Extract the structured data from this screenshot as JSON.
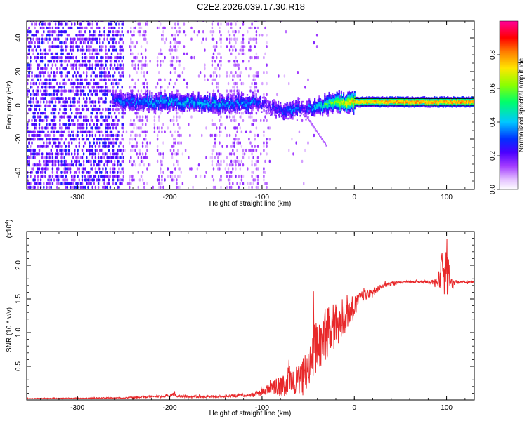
{
  "title": "C2E2.2026.039.17.30.R18",
  "chart_data": [
    {
      "type": "heatmap",
      "title": "C2E2.2026.039.17.30.R18",
      "xlabel": "Height of straight line (km)",
      "ylabel": "Frequency (Hz)",
      "xlim": [
        -355,
        130
      ],
      "ylim": [
        -50,
        50
      ],
      "xticks": [
        -300,
        -200,
        -100,
        0,
        100
      ],
      "yticks": [
        -40,
        -20,
        0,
        20,
        40
      ],
      "colorbar": {
        "label": "Normalized spectral amplitude",
        "range": [
          0,
          1
        ],
        "ticks": [
          0.0,
          0.2,
          0.4,
          0.6,
          0.8
        ],
        "tick_labels": [
          "0.0",
          "0.2",
          "0.4",
          "0.6",
          "0.8"
        ],
        "colors": [
          "#ffffff",
          "#cc66ff",
          "#6a00ff",
          "#0000ff",
          "#00c8ff",
          "#00ff80",
          "#7fff00",
          "#ffee00",
          "#ff8800",
          "#ff0000",
          "#ff00aa"
        ]
      },
      "ridge": {
        "x": [
          -262,
          -250,
          -200,
          -150,
          -110,
          -95,
          -80,
          -70,
          -60,
          -55,
          -50,
          -40,
          -30,
          -20,
          -10,
          0,
          20,
          60,
          90,
          100,
          130
        ],
        "frequency": [
          4,
          2,
          2,
          0.5,
          2,
          0,
          -3,
          -3,
          -2,
          -3,
          -2,
          -1,
          1,
          2,
          1,
          2,
          2,
          2,
          2,
          2,
          2
        ],
        "amplitude": [
          0.3,
          0.35,
          0.4,
          0.4,
          0.35,
          0.2,
          0.3,
          0.35,
          0.3,
          0.2,
          0.35,
          0.45,
          0.55,
          0.65,
          0.75,
          0.8,
          0.85,
          0.9,
          0.85,
          0.9,
          0.9
        ]
      },
      "noise_bands_x": [
        -345,
        -300,
        -240,
        -230,
        -210,
        -195,
        -150,
        -135,
        -125,
        -110,
        -95
      ]
    },
    {
      "type": "line",
      "xlabel": "Height of straight line (km)",
      "ylabel": "SNR (10 * v/v)",
      "y_multiplier": "(x10^4)",
      "y_multiplier_base": "(x10",
      "y_multiplier_exp": "4",
      "y_multiplier_close": ")",
      "xlim": [
        -355,
        130
      ],
      "ylim": [
        0,
        2.5
      ],
      "xticks": [
        -300,
        -200,
        -100,
        0,
        100
      ],
      "yticks": [
        0.5,
        1.0,
        1.5,
        2.0
      ],
      "ytick_labels": [
        "0.5",
        "1.0",
        "1.5",
        "2.0"
      ],
      "series": [
        {
          "name": "SNR",
          "color": "#e8282a",
          "x": [
            -355,
            -250,
            -200,
            -195,
            -190,
            -150,
            -110,
            -100,
            -90,
            -80,
            -70,
            -60,
            -50,
            -45,
            -40,
            -30,
            -20,
            -15,
            -10,
            0,
            10,
            20,
            30,
            40,
            50,
            60,
            70,
            80,
            90,
            95,
            100,
            105,
            110,
            130
          ],
          "y": [
            0.02,
            0.03,
            0.06,
            0.1,
            0.05,
            0.05,
            0.07,
            0.12,
            0.18,
            0.2,
            0.25,
            0.3,
            0.45,
            0.7,
            0.8,
            1.0,
            1.1,
            1.2,
            1.25,
            1.4,
            1.55,
            1.6,
            1.7,
            1.72,
            1.75,
            1.75,
            1.76,
            1.75,
            1.75,
            1.9,
            2.0,
            1.72,
            1.75,
            1.75
          ],
          "noise_amplitude": [
            0.005,
            0.01,
            0.02,
            0.04,
            0.02,
            0.02,
            0.03,
            0.05,
            0.1,
            0.15,
            0.2,
            0.25,
            0.3,
            0.45,
            0.4,
            0.4,
            0.35,
            0.3,
            0.25,
            0.15,
            0.08,
            0.06,
            0.04,
            0.03,
            0.02,
            0.02,
            0.02,
            0.02,
            0.05,
            0.3,
            0.5,
            0.1,
            0.02,
            0.02
          ]
        }
      ]
    }
  ]
}
